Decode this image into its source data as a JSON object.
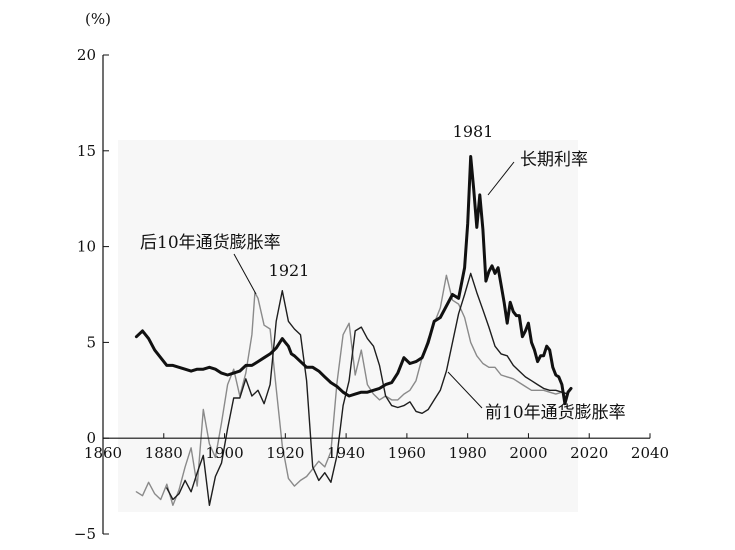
{
  "chart_data": {
    "type": "line",
    "title": "",
    "xlabel": "",
    "ylabel": "(%)",
    "xlim": [
      1860,
      2040
    ],
    "ylim": [
      -5,
      20
    ],
    "x_ticks": [
      "1860",
      "1880",
      "1900",
      "1920",
      "1940",
      "1960",
      "1980",
      "2000",
      "2020",
      "2040"
    ],
    "y_ticks": [
      "−5",
      "0",
      "5",
      "10",
      "15",
      "20"
    ],
    "grid": false,
    "legend": "none",
    "annotations": [
      {
        "key": "long",
        "text": "长期利率"
      },
      {
        "key": "next",
        "text": "后10年通货膨胀率"
      },
      {
        "key": "prev",
        "text": "前10年通货膨胀率"
      },
      {
        "key": "p1921",
        "text": "1921"
      },
      {
        "key": "p1981",
        "text": "1981"
      }
    ],
    "series": [
      {
        "name": "长期利率",
        "color": "#111111",
        "x": [
          1871,
          1873,
          1875,
          1877,
          1879,
          1881,
          1883,
          1885,
          1887,
          1889,
          1891,
          1893,
          1895,
          1897,
          1899,
          1901,
          1903,
          1905,
          1907,
          1909,
          1911,
          1913,
          1915,
          1917,
          1919,
          1920,
          1921,
          1922,
          1923,
          1925,
          1927,
          1929,
          1931,
          1933,
          1935,
          1937,
          1939,
          1941,
          1943,
          1945,
          1947,
          1949,
          1951,
          1953,
          1955,
          1957,
          1959,
          1961,
          1963,
          1965,
          1967,
          1969,
          1971,
          1973,
          1975,
          1977,
          1979,
          1980,
          1981,
          1982,
          1983,
          1984,
          1985,
          1986,
          1987,
          1988,
          1989,
          1990,
          1991,
          1992,
          1993,
          1994,
          1995,
          1996,
          1997,
          1998,
          1999,
          2000,
          2001,
          2002,
          2003,
          2004,
          2005,
          2006,
          2007,
          2008,
          2009,
          2010,
          2011,
          2012,
          2013,
          2014
        ],
        "values": [
          5.3,
          5.6,
          5.2,
          4.6,
          4.2,
          3.8,
          3.8,
          3.7,
          3.6,
          3.5,
          3.6,
          3.6,
          3.7,
          3.6,
          3.4,
          3.3,
          3.4,
          3.5,
          3.8,
          3.8,
          4.0,
          4.2,
          4.4,
          4.7,
          5.2,
          5.0,
          4.8,
          4.4,
          4.3,
          4.0,
          3.7,
          3.7,
          3.5,
          3.2,
          2.9,
          2.7,
          2.4,
          2.2,
          2.3,
          2.4,
          2.4,
          2.5,
          2.6,
          2.8,
          2.9,
          3.4,
          4.2,
          3.9,
          4.0,
          4.2,
          5.0,
          6.1,
          6.3,
          6.9,
          7.5,
          7.3,
          8.9,
          11.2,
          14.7,
          13.0,
          11.0,
          12.7,
          10.9,
          8.2,
          8.7,
          9.0,
          8.6,
          8.9,
          8.0,
          7.1,
          6.0,
          7.1,
          6.6,
          6.4,
          6.4,
          5.3,
          5.6,
          6.0,
          5.0,
          4.6,
          4.0,
          4.3,
          4.3,
          4.8,
          4.6,
          3.7,
          3.3,
          3.2,
          2.8,
          1.8,
          2.4,
          2.6
        ]
      },
      {
        "name": "后10年通货膨胀率",
        "color": "#8a8a8a",
        "x": [
          1871,
          1873,
          1875,
          1877,
          1879,
          1881,
          1883,
          1885,
          1887,
          1889,
          1891,
          1893,
          1895,
          1897,
          1899,
          1901,
          1903,
          1905,
          1907,
          1909,
          1910,
          1911,
          1913,
          1915,
          1917,
          1919,
          1921,
          1923,
          1925,
          1927,
          1929,
          1931,
          1933,
          1935,
          1937,
          1939,
          1941,
          1943,
          1945,
          1947,
          1949,
          1951,
          1953,
          1955,
          1957,
          1959,
          1961,
          1963,
          1965,
          1967,
          1969,
          1971,
          1973,
          1975,
          1977,
          1979,
          1981,
          1983,
          1985,
          1987,
          1989,
          1991,
          1993,
          1995,
          1997,
          1999,
          2001,
          2003,
          2005,
          2007,
          2009,
          2011,
          2013
        ],
        "values": [
          -2.8,
          -3.0,
          -2.3,
          -2.9,
          -3.2,
          -2.4,
          -3.5,
          -2.7,
          -1.5,
          -0.5,
          -2.5,
          1.5,
          -0.3,
          -1.0,
          0.8,
          2.8,
          3.6,
          2.2,
          3.4,
          5.4,
          7.6,
          7.3,
          5.9,
          5.7,
          2.6,
          -0.4,
          -2.1,
          -2.5,
          -2.2,
          -2.0,
          -1.6,
          -1.2,
          -1.5,
          -0.7,
          2.9,
          5.4,
          6.0,
          3.3,
          4.6,
          2.8,
          2.3,
          2.0,
          2.2,
          2.0,
          2.0,
          2.3,
          2.5,
          3.0,
          4.2,
          5.2,
          6.0,
          6.8,
          8.5,
          7.2,
          7.0,
          6.3,
          5.0,
          4.3,
          3.9,
          3.7,
          3.7,
          3.3,
          3.2,
          3.1,
          2.9,
          2.7,
          2.5,
          2.5,
          2.5,
          2.4,
          2.3,
          2.4,
          2.3
        ]
      },
      {
        "name": "前10年通货膨胀率",
        "color": "#1e1e1e",
        "x": [
          1881,
          1883,
          1885,
          1887,
          1889,
          1891,
          1893,
          1895,
          1897,
          1899,
          1901,
          1903,
          1905,
          1907,
          1909,
          1911,
          1913,
          1915,
          1917,
          1919,
          1921,
          1923,
          1925,
          1927,
          1929,
          1931,
          1933,
          1935,
          1937,
          1939,
          1941,
          1943,
          1945,
          1947,
          1949,
          1951,
          1953,
          1955,
          1957,
          1959,
          1961,
          1963,
          1965,
          1967,
          1969,
          1971,
          1973,
          1975,
          1977,
          1979,
          1981,
          1983,
          1985,
          1987,
          1989,
          1991,
          1993,
          1995,
          1997,
          1999,
          2001,
          2003,
          2005,
          2007,
          2009,
          2011,
          2013
        ],
        "values": [
          -2.6,
          -3.2,
          -2.9,
          -2.2,
          -2.8,
          -1.8,
          -0.9,
          -3.5,
          -2.0,
          -1.3,
          0.5,
          2.1,
          2.1,
          3.1,
          2.2,
          2.5,
          1.8,
          2.8,
          6.1,
          7.7,
          6.1,
          5.7,
          5.4,
          3.0,
          -1.5,
          -2.2,
          -1.8,
          -2.3,
          -0.9,
          1.7,
          3.0,
          5.6,
          5.8,
          5.2,
          4.8,
          3.8,
          2.2,
          1.7,
          1.6,
          1.7,
          1.9,
          1.4,
          1.3,
          1.5,
          2.0,
          2.5,
          3.5,
          5.0,
          6.5,
          7.5,
          8.6,
          7.6,
          6.7,
          5.8,
          4.8,
          4.4,
          4.3,
          3.8,
          3.5,
          3.2,
          3.0,
          2.8,
          2.6,
          2.5,
          2.5,
          2.4,
          2.3
        ]
      }
    ]
  }
}
